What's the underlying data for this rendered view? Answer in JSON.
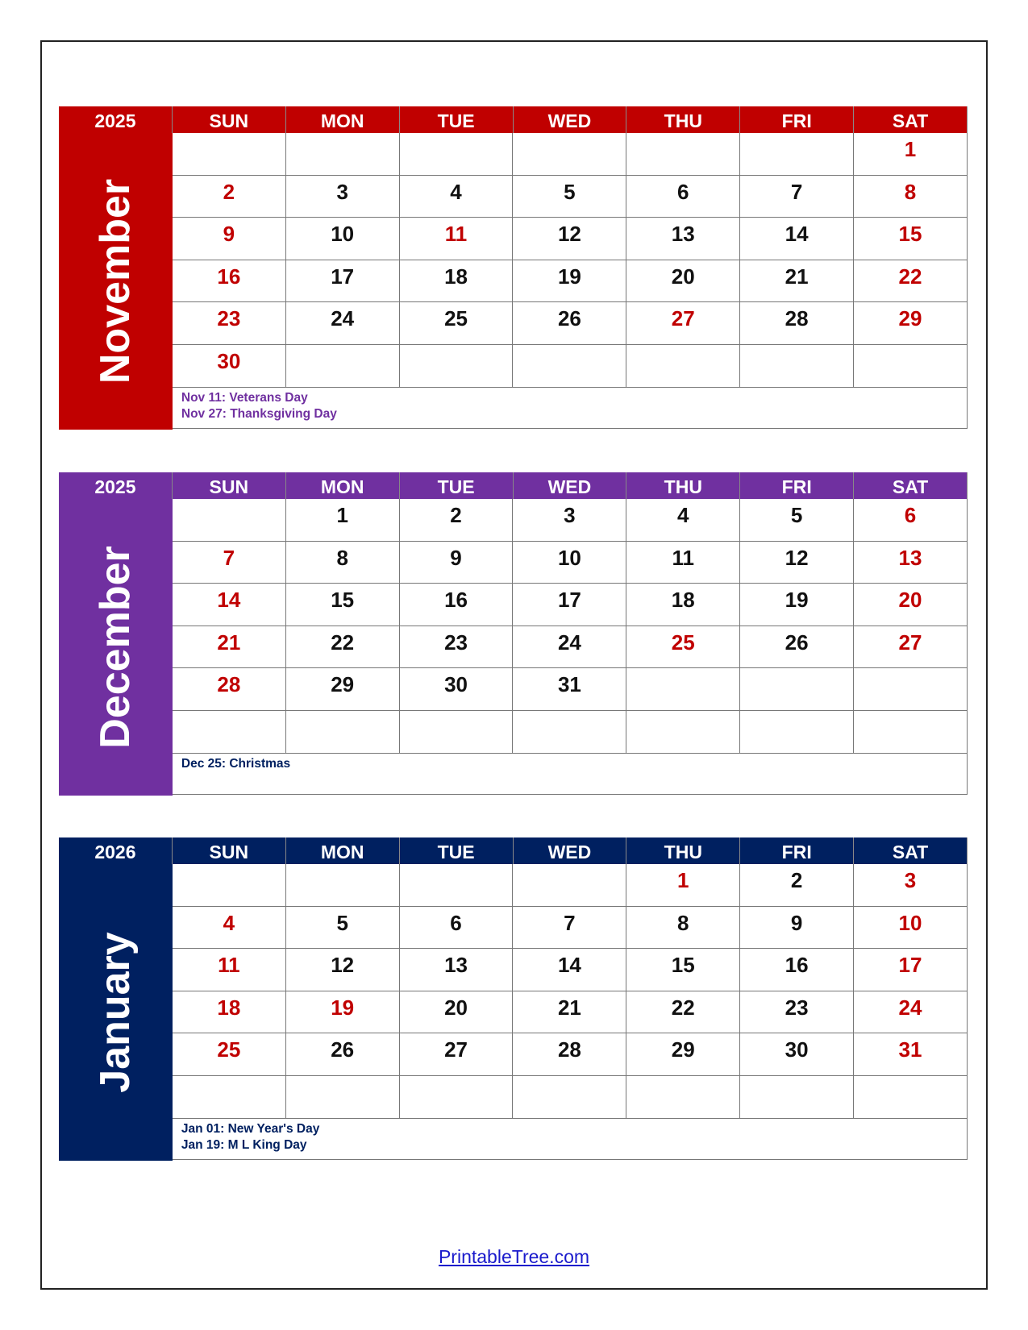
{
  "weekdays": [
    "SUN",
    "MON",
    "TUE",
    "WED",
    "THU",
    "FRI",
    "SAT"
  ],
  "day_color_highlight": "#C00000",
  "months": [
    {
      "year": "2025",
      "name": "November",
      "color": "#C00000",
      "note_color": "#7030A0",
      "weeks": [
        [
          null,
          null,
          null,
          null,
          null,
          null,
          1
        ],
        [
          2,
          3,
          4,
          5,
          6,
          7,
          8
        ],
        [
          9,
          10,
          11,
          12,
          13,
          14,
          15
        ],
        [
          16,
          17,
          18,
          19,
          20,
          21,
          22
        ],
        [
          23,
          24,
          25,
          26,
          27,
          28,
          29
        ],
        [
          30,
          null,
          null,
          null,
          null,
          null,
          null
        ]
      ],
      "red_days": [
        1,
        2,
        8,
        9,
        11,
        15,
        16,
        22,
        23,
        27,
        29,
        30
      ],
      "notes": [
        "Nov 11: Veterans Day",
        "Nov 27: Thanksgiving Day"
      ]
    },
    {
      "year": "2025",
      "name": "December",
      "color": "#7030A0",
      "note_color": "#002060",
      "weeks": [
        [
          null,
          1,
          2,
          3,
          4,
          5,
          6
        ],
        [
          7,
          8,
          9,
          10,
          11,
          12,
          13
        ],
        [
          14,
          15,
          16,
          17,
          18,
          19,
          20
        ],
        [
          21,
          22,
          23,
          24,
          25,
          26,
          27
        ],
        [
          28,
          29,
          30,
          31,
          null,
          null,
          null
        ],
        [
          null,
          null,
          null,
          null,
          null,
          null,
          null
        ]
      ],
      "red_days": [
        6,
        7,
        13,
        14,
        20,
        21,
        25,
        27,
        28
      ],
      "notes": [
        "Dec 25: Christmas"
      ]
    },
    {
      "year": "2026",
      "name": "January",
      "color": "#002060",
      "note_color": "#002060",
      "weeks": [
        [
          null,
          null,
          null,
          null,
          1,
          2,
          3
        ],
        [
          4,
          5,
          6,
          7,
          8,
          9,
          10
        ],
        [
          11,
          12,
          13,
          14,
          15,
          16,
          17
        ],
        [
          18,
          19,
          20,
          21,
          22,
          23,
          24
        ],
        [
          25,
          26,
          27,
          28,
          29,
          30,
          31
        ],
        [
          null,
          null,
          null,
          null,
          null,
          null,
          null
        ]
      ],
      "red_days": [
        1,
        3,
        4,
        10,
        11,
        17,
        18,
        19,
        24,
        25,
        31
      ],
      "notes": [
        "Jan 01: New Year's Day",
        "Jan 19: M L King Day"
      ]
    }
  ],
  "footer": {
    "link_text": "PrintableTree.com"
  }
}
